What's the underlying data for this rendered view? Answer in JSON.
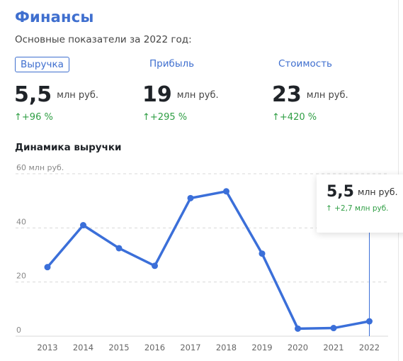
{
  "title": "Финансы",
  "subtitle": "Основные показатели за 2022 год:",
  "tabs": [
    {
      "label": "Выручка",
      "active": true
    },
    {
      "label": "Прибыль",
      "active": false
    },
    {
      "label": "Стоимость",
      "active": false
    }
  ],
  "metrics": [
    {
      "value": "5,5",
      "unit": "млн руб.",
      "change": "+96 %",
      "change_arrow": "↑"
    },
    {
      "value": "19",
      "unit": "млн руб.",
      "change": "+295 %",
      "change_arrow": "↑"
    },
    {
      "value": "23",
      "unit": "млн руб.",
      "change": "+420 %",
      "change_arrow": "↑"
    }
  ],
  "section_title": "Динамика выручки",
  "tooltip": {
    "value": "5,5",
    "unit": "млн руб.",
    "change": "+2,7 млн руб.",
    "change_arrow": "↑"
  },
  "colors": {
    "accent": "#3f6fcf",
    "line": "#3b6fd9",
    "positive": "#2f9e44",
    "grid": "#d9d9d9"
  },
  "chart_data": {
    "type": "line",
    "title": "Динамика выручки",
    "x": [
      "2013",
      "2014",
      "2015",
      "2016",
      "2017",
      "2018",
      "2019",
      "2020",
      "2021",
      "2022"
    ],
    "series": [
      {
        "values": [
          25.5,
          41,
          32.5,
          26,
          51,
          53.5,
          30.5,
          2.8,
          3,
          5.5
        ]
      }
    ],
    "y_ticks": [
      "0",
      "20",
      "40",
      "60 млн руб."
    ],
    "ylim": [
      0,
      60
    ],
    "grid": true,
    "highlight": "2022"
  }
}
